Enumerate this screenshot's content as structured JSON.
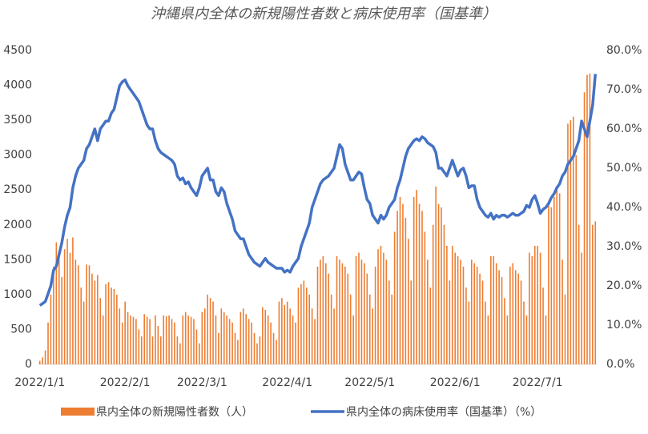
{
  "chart_data": {
    "type": "bar",
    "title": "沖縄県内全体の新規陽性者数と病床使用率（国基準）",
    "categories": [
      "2022/1/1",
      null,
      null,
      null,
      null,
      null,
      null,
      null,
      null,
      null,
      null,
      null,
      null,
      null,
      null,
      null,
      null,
      null,
      null,
      null,
      null,
      null,
      null,
      null,
      null,
      null,
      null,
      null,
      null,
      null,
      null,
      "2022/2/1",
      null,
      null,
      null,
      null,
      null,
      null,
      null,
      null,
      null,
      null,
      null,
      null,
      null,
      null,
      null,
      null,
      null,
      null,
      null,
      null,
      null,
      null,
      null,
      null,
      null,
      null,
      null,
      "2022/3/1",
      null,
      null,
      null,
      null,
      null,
      null,
      null,
      null,
      null,
      null,
      null,
      null,
      null,
      null,
      null,
      null,
      null,
      null,
      null,
      null,
      null,
      null,
      null,
      null,
      null,
      null,
      null,
      null,
      null,
      null,
      "2022/4/1",
      null,
      null,
      null,
      null,
      null,
      null,
      null,
      null,
      null,
      null,
      null,
      null,
      null,
      null,
      null,
      null,
      null,
      null,
      null,
      null,
      null,
      null,
      null,
      null,
      null,
      null,
      null,
      null,
      null,
      "2022/5/1",
      null,
      null,
      null,
      null,
      null,
      null,
      null,
      null,
      null,
      null,
      null,
      null,
      null,
      null,
      null,
      null,
      null,
      null,
      null,
      null,
      null,
      null,
      null,
      null,
      null,
      null,
      null,
      null,
      null,
      null,
      "2022/6/1",
      null,
      null,
      null,
      null,
      null,
      null,
      null,
      null,
      null,
      null,
      null,
      null,
      null,
      null,
      null,
      null,
      null,
      null,
      null,
      null,
      null,
      null,
      null,
      null,
      null,
      null,
      null,
      null,
      null,
      "2022/7/1",
      null,
      null,
      null,
      null,
      null,
      null,
      null,
      null,
      null,
      null,
      null,
      null,
      null,
      null,
      null,
      null,
      null,
      null,
      null,
      null,
      null
    ],
    "series": [
      {
        "name": "県内全体の新規陽性者数（人）",
        "type": "bar",
        "color": "#ed7d31",
        "values": [
          50,
          100,
          200,
          600,
          1000,
          1400,
          1750,
          1550,
          1250,
          1650,
          1800,
          1600,
          1820,
          1500,
          1420,
          1100,
          900,
          1430,
          1420,
          1300,
          1200,
          1280,
          950,
          700,
          1150,
          1180,
          1100,
          1080,
          1000,
          800,
          600,
          900,
          750,
          700,
          680,
          650,
          500,
          400,
          720,
          680,
          650,
          400,
          700,
          550,
          400,
          700,
          690,
          700,
          650,
          600,
          400,
          300,
          700,
          750,
          700,
          680,
          650,
          500,
          300,
          750,
          800,
          1000,
          950,
          900,
          700,
          450,
          800,
          750,
          700,
          650,
          600,
          450,
          350,
          750,
          800,
          720,
          650,
          600,
          450,
          300,
          400,
          820,
          780,
          700,
          600,
          450,
          350,
          900,
          950,
          850,
          900,
          800,
          700,
          600,
          1100,
          1150,
          1200,
          1100,
          1000,
          800,
          650,
          1400,
          1500,
          1550,
          1450,
          1300,
          1000,
          800,
          1550,
          1500,
          1450,
          1400,
          1300,
          1000,
          700,
          1550,
          1600,
          1500,
          1450,
          1300,
          1000,
          800,
          1400,
          1650,
          1700,
          1600,
          1500,
          1200,
          1000,
          1900,
          2200,
          2400,
          2300,
          2100,
          1800,
          1200,
          2400,
          2500,
          2300,
          2200,
          1900,
          1500,
          1100,
          2000,
          2550,
          2300,
          2250,
          2000,
          1700,
          1200,
          1700,
          1600,
          1550,
          1500,
          1400,
          1100,
          900,
          1500,
          1450,
          1400,
          1300,
          1200,
          900,
          700,
          1550,
          1550,
          1450,
          1350,
          1250,
          950,
          700,
          1400,
          1450,
          1350,
          1300,
          1200,
          900,
          700,
          1600,
          1550,
          1700,
          1700,
          1600,
          1100,
          700,
          2300,
          2250,
          2400,
          2500,
          2450,
          1500,
          1000,
          3450,
          3500,
          3550,
          3000,
          2000,
          1600,
          3900,
          4150,
          4170,
          2000,
          2050
        ]
      },
      {
        "name": "県内全体の病床使用率（国基準）（%）",
        "type": "line",
        "axis": "y2",
        "color": "#4472c4",
        "values": [
          15,
          15.5,
          16,
          18,
          20,
          24,
          25,
          28,
          31,
          35,
          38,
          40,
          45,
          48,
          50,
          51,
          52,
          55,
          56,
          58,
          60,
          57,
          60,
          61,
          62,
          62,
          64,
          65,
          68,
          71,
          72,
          72.5,
          71,
          70,
          69,
          68,
          67,
          65,
          63,
          61,
          60,
          60,
          57,
          55,
          54,
          53.5,
          53,
          52.5,
          52,
          51,
          48,
          47,
          47.5,
          46,
          46.5,
          45,
          44,
          43,
          45,
          48,
          49,
          50,
          47,
          47,
          44,
          43,
          45,
          44,
          41,
          39,
          37,
          34,
          33,
          32,
          32,
          30,
          28,
          27,
          26,
          25.5,
          25,
          26,
          27,
          26,
          25.5,
          25,
          24.5,
          24.5,
          24.5,
          23.5,
          24,
          23.5,
          25,
          26,
          27,
          30,
          32,
          34,
          36,
          40,
          42,
          44,
          46,
          47,
          47.5,
          48,
          49,
          50,
          53,
          56,
          55,
          51,
          49,
          47,
          47,
          48,
          49,
          48.5,
          45,
          42,
          41,
          38,
          37,
          36,
          38,
          37,
          38,
          40,
          41,
          42,
          45,
          47,
          50,
          53,
          55,
          56,
          57,
          57.5,
          57,
          58,
          57.5,
          56.5,
          56,
          55.5,
          54,
          50,
          50,
          49,
          48,
          50,
          52,
          50,
          48,
          49.5,
          50,
          48,
          45,
          45.5,
          45.5,
          42,
          40,
          39,
          38,
          37.5,
          38.5,
          37,
          38,
          37.5,
          38,
          38,
          37.5,
          38,
          38.5,
          38,
          38,
          38.5,
          39,
          40.5,
          40,
          42,
          43,
          41,
          38.5,
          39.5,
          40,
          41,
          42.5,
          43.5,
          45,
          46,
          48,
          49,
          51,
          52,
          53,
          55,
          57,
          62,
          60,
          58,
          62,
          66,
          74
        ]
      }
    ],
    "ylim": [
      0,
      4500
    ],
    "yticks": [
      0,
      500,
      1000,
      1500,
      2000,
      2500,
      3000,
      3500,
      4000,
      4500
    ],
    "y2lim": [
      0,
      80
    ],
    "y2ticks": [
      {
        "value": 0,
        "label": "0.0%"
      },
      {
        "value": 10,
        "label": "10.0%"
      },
      {
        "value": 20,
        "label": "20.0%"
      },
      {
        "value": 30,
        "label": "30.0%"
      },
      {
        "value": 40,
        "label": "40.0%"
      },
      {
        "value": 50,
        "label": "50.0%"
      },
      {
        "value": 60,
        "label": "60.0%"
      },
      {
        "value": 70,
        "label": "70.0%"
      },
      {
        "value": 80,
        "label": "80.0%"
      }
    ],
    "grid": false,
    "legend": "bottom"
  }
}
